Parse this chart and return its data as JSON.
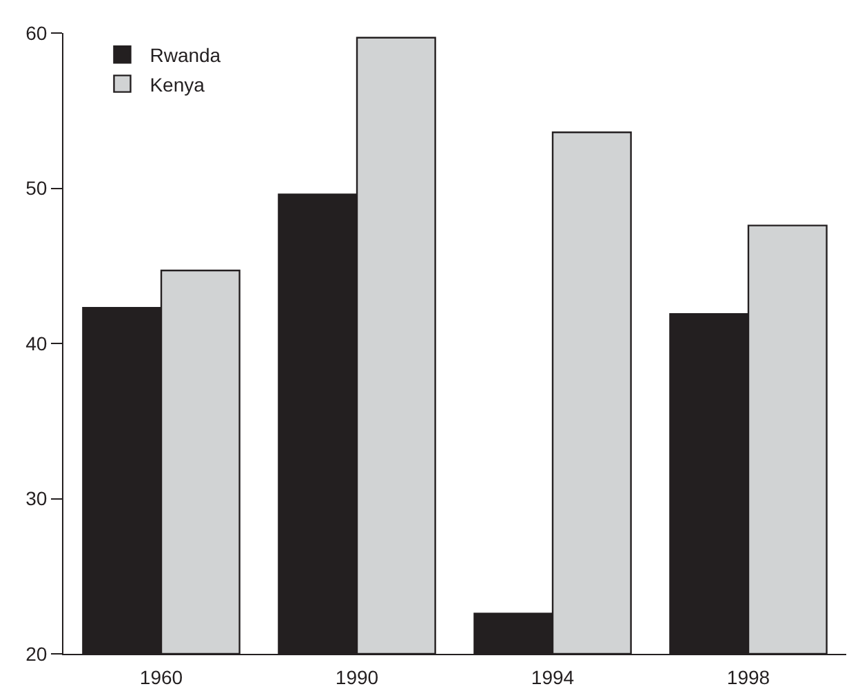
{
  "chart_data": {
    "type": "bar",
    "categories": [
      "1960",
      "1990",
      "1994",
      "1998"
    ],
    "series": [
      {
        "name": "Rwanda",
        "color": "#231f20",
        "values": [
          42.3,
          49.6,
          22.6,
          41.9
        ]
      },
      {
        "name": "Kenya",
        "color": "#d1d3d4",
        "values": [
          44.7,
          59.7,
          53.6,
          47.6
        ]
      }
    ],
    "ylim": [
      20,
      60
    ],
    "yticks": [
      20,
      30,
      40,
      50,
      60
    ],
    "legend": "top left"
  }
}
